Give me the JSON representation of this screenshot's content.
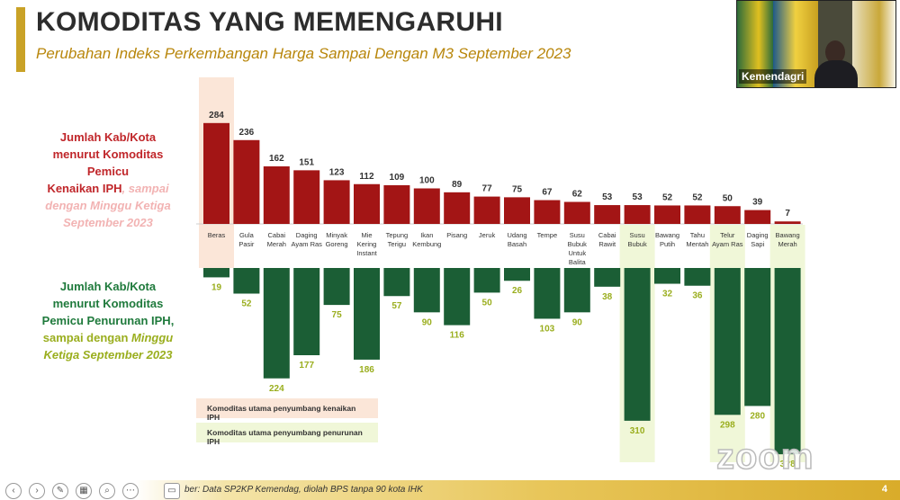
{
  "header": {
    "title": "KOMODITAS YANG MEMENGARUHI",
    "subtitle": "Perubahan Indeks Perkembangan Harga Sampai Dengan M3 September 2023"
  },
  "video": {
    "participant_label": "Kemendagri"
  },
  "left_labels": {
    "red_line1": "Jumlah Kab/Kota",
    "red_line2": "menurut Komoditas",
    "red_line3": "Pemicu",
    "red_line4a": "Kenaikan IPH",
    "red_line4b": ", sampai",
    "red_line5": "dengan Minggu Ketiga",
    "red_line6": "September 2023",
    "green_line1": "Jumlah Kab/Kota",
    "green_line2": "menurut Komoditas",
    "green_line3a": "Pemicu Penurunan IPH",
    "green_line3b": ",",
    "green_line4a": "sampai dengan ",
    "green_line4b": "Minggu",
    "green_line5": "Ketiga September 2023"
  },
  "legend": {
    "up": "Komoditas utama penyumbang kenaikan IPH",
    "down": "Komoditas utama penyumbang penurunan IPH"
  },
  "footer": {
    "source": "ber: Data SP2KP Kemendag, diolah BPS tanpa 90 kota IHK",
    "page": "4"
  },
  "watermark": "zoom",
  "colors": {
    "up_bar": "#a31515",
    "down_bar": "#1b5e35",
    "up_value": "#333333",
    "down_value": "#9aae1e",
    "up_highlight": "#fbe6d8",
    "down_highlight": "#f0f7d8"
  },
  "chart_data": {
    "type": "bar",
    "categories": [
      "Beras",
      "Gula Pasir",
      "Cabai Merah",
      "Daging Ayam Ras",
      "Minyak Goreng",
      "Mie Kering Instant",
      "Tepung Terigu",
      "Ikan Kembung",
      "Pisang",
      "Jeruk",
      "Udang Basah",
      "Tempe",
      "Susu Bubuk Untuk Balita",
      "Cabai Rawit",
      "Susu Bubuk",
      "Bawang Putih",
      "Tahu Mentah",
      "Telur Ayam Ras",
      "Daging Sapi",
      "Bawang Merah"
    ],
    "category_lines": [
      [
        "Beras"
      ],
      [
        "Gula",
        "Pasir"
      ],
      [
        "Cabai",
        "Merah"
      ],
      [
        "Daging",
        "Ayam Ras"
      ],
      [
        "Minyak",
        "Goreng"
      ],
      [
        "Mie",
        "Kering",
        "Instant"
      ],
      [
        "Tepung",
        "Terigu"
      ],
      [
        "Ikan",
        "Kembung"
      ],
      [
        "Pisang"
      ],
      [
        "Jeruk"
      ],
      [
        "Udang",
        "Basah"
      ],
      [
        "Tempe"
      ],
      [
        "Susu",
        "Bubuk",
        "Untuk",
        "Balita"
      ],
      [
        "Cabai",
        "Rawit"
      ],
      [
        "Susu",
        "Bubuk"
      ],
      [
        "Bawang",
        "Putih"
      ],
      [
        "Tahu",
        "Mentah"
      ],
      [
        "Telur",
        "Ayam Ras"
      ],
      [
        "Daging",
        "Sapi"
      ],
      [
        "Bawang",
        "Merah"
      ]
    ],
    "series": [
      {
        "values": [
          284,
          236,
          162,
          151,
          123,
          112,
          109,
          100,
          89,
          77,
          75,
          67,
          62,
          53,
          53,
          52,
          52,
          50,
          39,
          7
        ]
      },
      {
        "values": [
          19,
          52,
          224,
          177,
          75,
          186,
          57,
          90,
          116,
          50,
          26,
          103,
          90,
          38,
          310,
          32,
          36,
          298,
          280,
          378
        ]
      }
    ],
    "value_labels_up": [
      "284",
      "236",
      "162",
      "151",
      "123",
      "112",
      "109",
      "100",
      "89",
      "77",
      "75",
      "67",
      "62",
      "53",
      "53",
      "52",
      "52",
      "50",
      "39",
      "7"
    ],
    "value_labels_down": [
      "19",
      "52",
      "224",
      "177",
      "75",
      "186",
      "57",
      "90",
      "116",
      "50",
      "26",
      "103",
      "90",
      "38",
      "310",
      "32",
      "36",
      "298",
      "280",
      "3?8"
    ],
    "highlight_up": [
      "Beras"
    ],
    "highlight_down": [
      "Susu Bubuk",
      "Telur Ayam Ras",
      "Bawang Merah"
    ]
  }
}
